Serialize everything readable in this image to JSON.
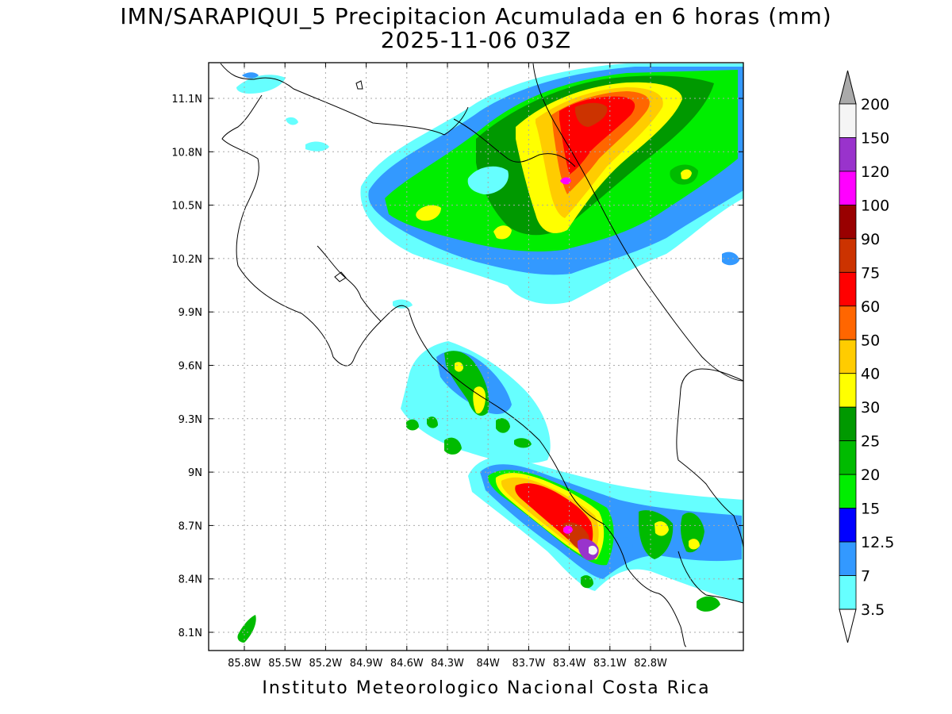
{
  "title": {
    "line1": "IMN/SARAPIQUI_5 Precipitacion Acumulada en 6 horas (mm)",
    "line2": "2025-11-06 03Z"
  },
  "credit": "Instituto Meteorologico Nacional Costa Rica",
  "axes": {
    "longitude_labels": [
      "85.8W",
      "85.5W",
      "85.2W",
      "84.9W",
      "84.6W",
      "84.3W",
      "84W",
      "83.7W",
      "83.4W",
      "83.1W",
      "82.8W"
    ],
    "latitude_labels": [
      "11.1N",
      "10.8N",
      "10.5N",
      "10.2N",
      "9.9N",
      "9.6N",
      "9.3N",
      "9N",
      "8.7N",
      "8.4N",
      "8.1N"
    ],
    "grid": true
  },
  "colorbar": {
    "levels": [
      "200",
      "150",
      "120",
      "100",
      "90",
      "75",
      "60",
      "50",
      "40",
      "30",
      "25",
      "20",
      "15",
      "12.5",
      "7",
      "3.5"
    ],
    "colors": [
      "#aaaaaa",
      "#f5f5f5",
      "#9933cc",
      "#ff00ff",
      "#990000",
      "#cc3300",
      "#ff0000",
      "#ff6600",
      "#ffcc00",
      "#ffff00",
      "#009900",
      "#00bb00",
      "#00ee00",
      "#0000ff",
      "#3399ff",
      "#66ffff"
    ]
  }
}
